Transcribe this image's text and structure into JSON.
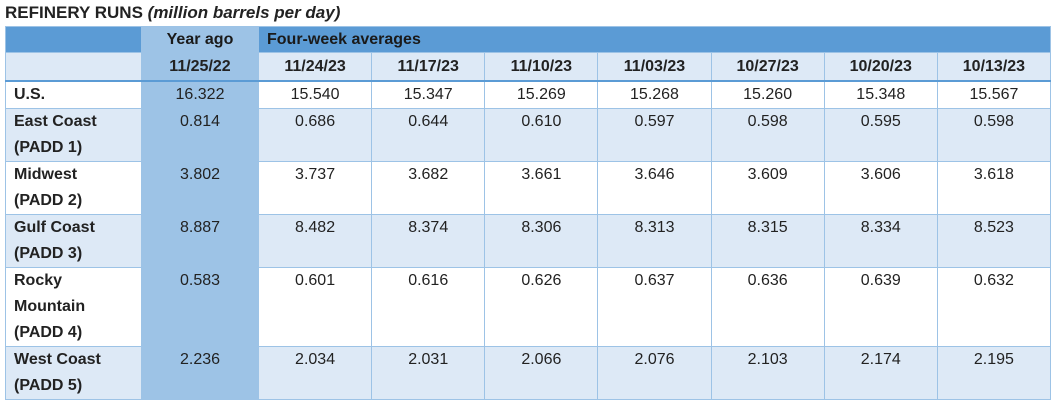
{
  "title": "REFINERY RUNS",
  "subtitle": "(million barrels per day)",
  "table": {
    "header": {
      "year_ago": "Year ago",
      "four_week": "Four-week averages"
    },
    "dates": [
      "11/25/22",
      "11/24/23",
      "11/17/23",
      "11/10/23",
      "11/03/23",
      "10/27/23",
      "10/20/23",
      "10/13/23"
    ],
    "rows": [
      {
        "label": [
          "U.S."
        ],
        "values": [
          "16.322",
          "15.540",
          "15.347",
          "15.269",
          "15.268",
          "15.260",
          "15.348",
          "15.567"
        ]
      },
      {
        "label": [
          "East Coast",
          "(PADD 1)"
        ],
        "values": [
          "0.814",
          "0.686",
          "0.644",
          "0.610",
          "0.597",
          "0.598",
          "0.595",
          "0.598"
        ]
      },
      {
        "label": [
          "Midwest",
          "(PADD 2)"
        ],
        "values": [
          "3.802",
          "3.737",
          "3.682",
          "3.661",
          "3.646",
          "3.609",
          "3.606",
          "3.618"
        ]
      },
      {
        "label": [
          "Gulf Coast",
          "(PADD 3)"
        ],
        "values": [
          "8.887",
          "8.482",
          "8.374",
          "8.306",
          "8.313",
          "8.315",
          "8.334",
          "8.523"
        ]
      },
      {
        "label": [
          "Rocky",
          "Mountain",
          "(PADD 4)"
        ],
        "values": [
          "0.583",
          "0.601",
          "0.616",
          "0.626",
          "0.637",
          "0.636",
          "0.639",
          "0.632"
        ]
      },
      {
        "label": [
          "West Coast",
          "(PADD 5)"
        ],
        "values": [
          "2.236",
          "2.034",
          "2.031",
          "2.066",
          "2.076",
          "2.103",
          "2.174",
          "2.195"
        ]
      }
    ]
  }
}
